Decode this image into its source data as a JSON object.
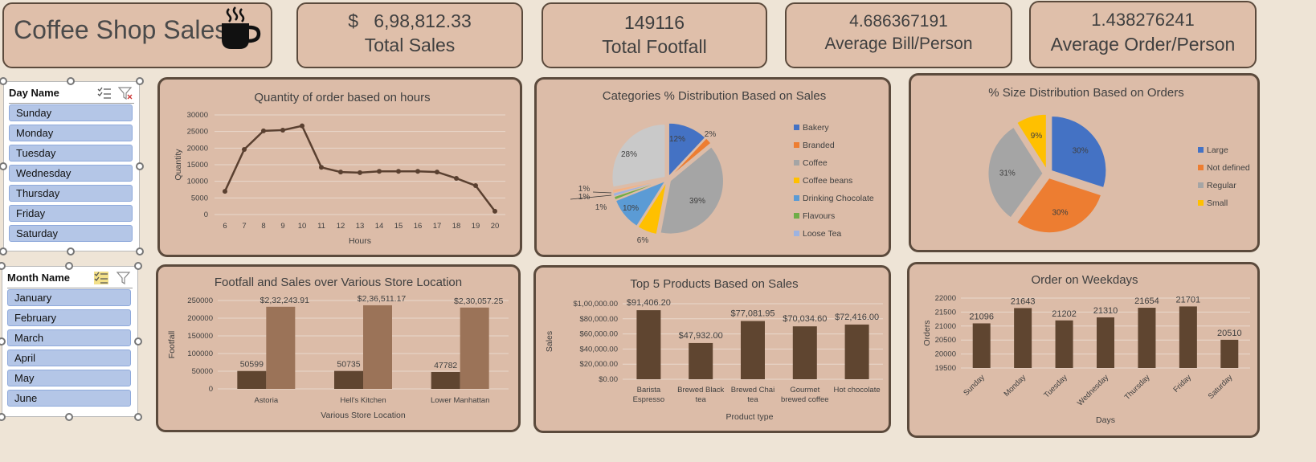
{
  "header": {
    "title": "Coffee Shop Sales",
    "icon": "coffee-cup-icon"
  },
  "kpis": [
    {
      "value": "$   6,98,812.33",
      "label": "Total Sales"
    },
    {
      "value": "149116",
      "label": "Total Footfall"
    },
    {
      "value": "4.686367191",
      "label": "Average Bill/Person"
    },
    {
      "value": "1.438276241",
      "label": "Average Order/Person"
    }
  ],
  "slicers": {
    "day": {
      "title": "Day Name",
      "items": [
        "Sunday",
        "Monday",
        "Tuesday",
        "Wednesday",
        "Thursday",
        "Friday",
        "Saturday"
      ]
    },
    "month": {
      "title": "Month Name",
      "items": [
        "January",
        "February",
        "March",
        "April",
        "May",
        "June"
      ]
    }
  },
  "colors": {
    "line": "#5a4030",
    "bar_dark": "#5f4530",
    "bar_light": "#9b7358",
    "background": "#EEE4D6",
    "panel": "#DCBCA8"
  },
  "chart_data": [
    {
      "id": "hours",
      "type": "line",
      "title": "Quantity of order based on hours",
      "xlabel": "Hours",
      "ylabel": "Quantity",
      "x": [
        6,
        7,
        8,
        9,
        10,
        11,
        12,
        13,
        14,
        15,
        16,
        17,
        18,
        19,
        20
      ],
      "y": [
        7000,
        19600,
        25200,
        25400,
        26700,
        14200,
        12800,
        12600,
        13000,
        13000,
        13000,
        12800,
        10900,
        8700,
        1000
      ],
      "ylim": [
        0,
        30000
      ],
      "yticks": [
        "0",
        "5000",
        "10000",
        "15000",
        "20000",
        "25000",
        "30000"
      ],
      "grid": true
    },
    {
      "id": "categories",
      "type": "pie",
      "title": "Categories % Distribution Based on Sales",
      "legend_position": "right",
      "slices": [
        {
          "name": "Bakery",
          "value": 12,
          "label": "12%",
          "color": "#4472C4"
        },
        {
          "name": "Branded",
          "value": 2,
          "label": "2%",
          "color": "#ED7D31"
        },
        {
          "name": "Coffee",
          "value": 39,
          "label": "39%",
          "color": "#A5A5A5"
        },
        {
          "name": "Coffee beans",
          "value": 6,
          "label": "6%",
          "color": "#FFC000"
        },
        {
          "name": "Drinking Chocolate",
          "value": 10,
          "label": "10%",
          "color": "#5B9BD5"
        },
        {
          "name": "Flavours",
          "value": 1,
          "label": "1%",
          "color": "#70AD47"
        },
        {
          "name": "Loose Tea",
          "value": 1,
          "label": "1%",
          "color": "#9DB3E0"
        },
        {
          "name": "",
          "value": 1,
          "label": "1%",
          "color": "#F4B183"
        },
        {
          "name": "",
          "value": 28,
          "label": "28%",
          "color": "#C9C9C9"
        }
      ]
    },
    {
      "id": "sizes",
      "type": "pie",
      "title": "% Size Distribution Based on Orders",
      "legend_position": "right",
      "slices": [
        {
          "name": "Large",
          "value": 30,
          "label": "30%",
          "color": "#4472C4"
        },
        {
          "name": "Not defined",
          "value": 30,
          "label": "30%",
          "color": "#ED7D31"
        },
        {
          "name": "Regular",
          "value": 31,
          "label": "31%",
          "color": "#A5A5A5"
        },
        {
          "name": "Small",
          "value": 9,
          "label": "9%",
          "color": "#FFC000"
        }
      ]
    },
    {
      "id": "locations",
      "type": "bar",
      "title": "Footfall and Sales over Various Store Location",
      "xlabel": "Various Store Location",
      "ylabel": "Footfall",
      "categories": [
        "Astoria",
        "Hell's Kitchen",
        "Lower Manhattan"
      ],
      "series": [
        {
          "values": [
            50599,
            50735,
            47782
          ],
          "labels": [
            "50599",
            "50735",
            "47782"
          ]
        },
        {
          "values": [
            232243.91,
            236511.17,
            230057.25
          ],
          "labels": [
            "$2,32,243.91",
            "$2,36,511.17",
            "$2,30,057.25"
          ]
        }
      ],
      "ylim": [
        0,
        250000
      ],
      "yticks": [
        "0",
        "50000",
        "100000",
        "150000",
        "200000",
        "250000"
      ]
    },
    {
      "id": "products",
      "type": "bar",
      "title": "Top 5 Products Based on Sales",
      "xlabel": "Product type",
      "ylabel": "Sales",
      "categories": [
        [
          "Barista",
          "Espresso"
        ],
        [
          "Brewed Black",
          "tea"
        ],
        [
          "Brewed Chai",
          "tea"
        ],
        [
          "Gourmet",
          "brewed coffee"
        ],
        [
          "Hot chocolate"
        ]
      ],
      "values": [
        91406.2,
        47932.0,
        77081.95,
        70034.6,
        72416.0
      ],
      "labels": [
        "$91,406.20",
        "$47,932.00",
        "$77,081.95",
        "$70,034.60",
        "$72,416.00"
      ],
      "ylim": [
        0,
        100000
      ],
      "yticks": [
        "$0.00",
        "$20,000.00",
        "$40,000.00",
        "$60,000.00",
        "$80,000.00",
        "$1,00,000.00"
      ]
    },
    {
      "id": "weekdays",
      "type": "bar",
      "title": "Order on Weekdays",
      "xlabel": "Days",
      "ylabel": "Orders",
      "categories": [
        "Sunday",
        "Monday",
        "Tuesday",
        "Wednesday",
        "Thursday",
        "Friday",
        "Saturday"
      ],
      "values": [
        21096,
        21643,
        21202,
        21310,
        21654,
        21701,
        20510
      ],
      "labels": [
        "21096",
        "21643",
        "21202",
        "21310",
        "21654",
        "21701",
        "20510"
      ],
      "ylim": [
        19500,
        22000
      ],
      "yticks": [
        "19500",
        "20000",
        "20500",
        "21000",
        "21500",
        "22000"
      ]
    }
  ]
}
